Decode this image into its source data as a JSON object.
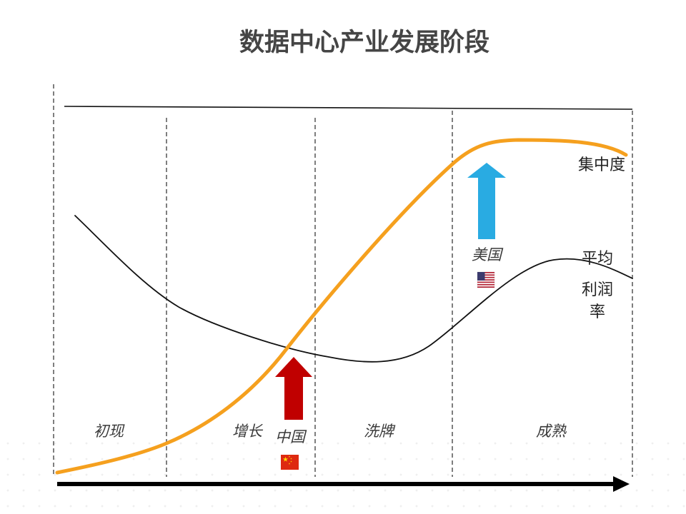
{
  "title": "数据中心产业发展阶段",
  "stages": [
    {
      "label": "初现"
    },
    {
      "label": "增长"
    },
    {
      "label": "洗牌"
    },
    {
      "label": "成熟"
    }
  ],
  "curves": {
    "concentration": {
      "label": "集中度",
      "color": "#F5A01E"
    },
    "average_profit_margin": {
      "label_lines": [
        "平均",
        "利润",
        "率"
      ],
      "color": "#111111"
    }
  },
  "markers": {
    "china": {
      "label": "中国",
      "arrow_color": "#C00000",
      "flag_icon": "china-flag-icon"
    },
    "usa": {
      "label": "美国",
      "arrow_color": "#29ABE2",
      "flag_icon": "usa-flag-icon"
    }
  },
  "axis": {
    "color": "#000000",
    "arrow_icon": "right-arrow-icon"
  }
}
